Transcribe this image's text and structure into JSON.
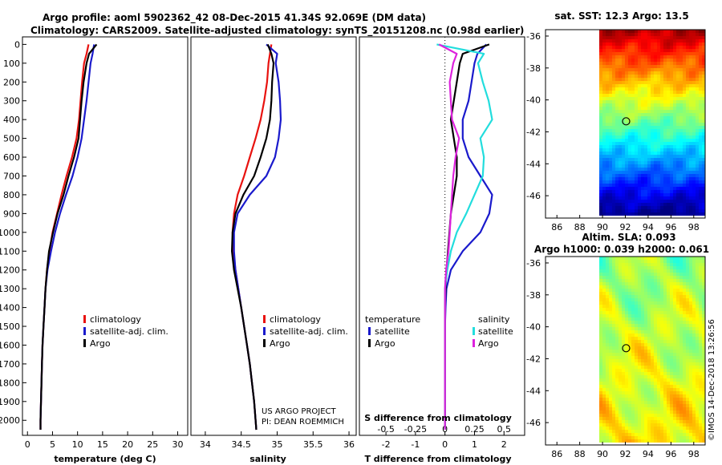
{
  "header": {
    "line1": "Argo profile: aoml 5902362_42 08-Dec-2015 41.34S 92.069E (DM data)",
    "line2": "Climatology: CARS2009. Satellite-adjusted climatology: synTS_20151208.nc (0.98d earlier)"
  },
  "colors": {
    "climatology": "#e8120f",
    "satellite": "#1a1acc",
    "argo": "#000000",
    "sat_s": "#22dddd",
    "clim_s": "#dd22dd"
  },
  "chart_data": [
    {
      "type": "line",
      "name": "temperature",
      "xlabel": "temperature (deg C)",
      "ylabel": "",
      "xlim": [
        -1,
        32
      ],
      "ylim": [
        2080,
        -40
      ],
      "xticks": [
        "0",
        "5",
        "10",
        "15",
        "20",
        "25",
        "30"
      ],
      "yticks": [
        "0",
        "100",
        "200",
        "300",
        "400",
        "500",
        "600",
        "700",
        "800",
        "900",
        "1000",
        "1100",
        "1200",
        "1300",
        "1400",
        "1500",
        "1600",
        "1700",
        "1800",
        "1900",
        "2000"
      ],
      "depth": [
        0,
        50,
        100,
        200,
        300,
        400,
        500,
        600,
        700,
        800,
        900,
        1000,
        1100,
        1200,
        1300,
        1400,
        1500,
        1600,
        1700,
        1800,
        1900,
        2000,
        2050
      ],
      "series": [
        {
          "name": "climatology",
          "values": [
            12.2,
            11.8,
            11.3,
            10.9,
            10.6,
            10.3,
            9.8,
            8.9,
            7.8,
            6.8,
            5.9,
            5.0,
            4.4,
            3.9,
            3.6,
            3.4,
            3.2,
            3.0,
            2.9,
            2.8,
            2.7,
            2.6,
            2.6
          ]
        },
        {
          "name": "satellite-adj. clim.",
          "values": [
            13.3,
            13.0,
            12.6,
            12.2,
            11.8,
            11.3,
            10.8,
            10.0,
            9.0,
            7.7,
            6.5,
            5.5,
            4.7,
            4.0,
            3.6,
            3.4,
            3.2,
            3.0,
            2.9,
            2.8,
            2.7,
            2.6,
            2.6
          ]
        },
        {
          "name": "Argo",
          "values": [
            13.8,
            12.3,
            11.8,
            11.2,
            10.8,
            10.5,
            10.2,
            9.3,
            8.2,
            7.2,
            6.0,
            5.1,
            4.3,
            3.9,
            3.6,
            3.4,
            3.2,
            3.0,
            2.9,
            2.8,
            2.7,
            2.6,
            2.6
          ]
        }
      ],
      "legend": [
        "climatology",
        "satellite-adj. clim.",
        "Argo"
      ]
    },
    {
      "type": "line",
      "name": "salinity",
      "xlabel": "salinity",
      "ylabel": "",
      "xlim": [
        33.8,
        36.1
      ],
      "ylim": [
        2080,
        -40
      ],
      "xticks": [
        "34",
        "34.5",
        "35",
        "35.5",
        "36"
      ],
      "depth": [
        0,
        50,
        100,
        200,
        300,
        400,
        500,
        600,
        700,
        800,
        900,
        1000,
        1100,
        1200,
        1300,
        1400,
        1500,
        1600,
        1700,
        1800,
        1900,
        2000,
        2050
      ],
      "series": [
        {
          "name": "climatology",
          "values": [
            34.92,
            34.9,
            34.88,
            34.86,
            34.82,
            34.77,
            34.7,
            34.62,
            34.54,
            34.45,
            34.4,
            34.38,
            34.39,
            34.42,
            34.46,
            34.5,
            34.54,
            34.58,
            34.62,
            34.65,
            34.68,
            34.7,
            34.71
          ]
        },
        {
          "name": "satellite-adj. clim.",
          "values": [
            34.85,
            35.0,
            34.98,
            35.02,
            35.04,
            35.05,
            35.02,
            34.97,
            34.85,
            34.62,
            34.45,
            34.4,
            34.4,
            34.42,
            34.46,
            34.5,
            34.54,
            34.58,
            34.62,
            34.65,
            34.68,
            34.7,
            34.71
          ]
        },
        {
          "name": "Argo",
          "values": [
            34.87,
            34.92,
            34.95,
            34.93,
            34.92,
            34.9,
            34.85,
            34.77,
            34.68,
            34.53,
            34.42,
            34.38,
            34.37,
            34.4,
            34.45,
            34.5,
            34.54,
            34.58,
            34.62,
            34.65,
            34.68,
            34.7,
            34.71
          ]
        }
      ],
      "legend": [
        "climatology",
        "satellite-adj. clim.",
        "Argo"
      ],
      "credit": [
        "US ARGO PROJECT",
        "PI: DEAN ROEMMICH"
      ]
    },
    {
      "type": "line",
      "name": "differences",
      "xlabel": "T difference from climatology",
      "xlabel2": "S difference from climatology",
      "xlim": [
        -2.9,
        2.7
      ],
      "ylim": [
        2080,
        -40
      ],
      "xticks": [
        "-2",
        "-1",
        "0",
        "1",
        "2"
      ],
      "xticks_s": [
        "-0.5",
        "-0.25",
        "0",
        "0.25",
        "0.5"
      ],
      "depth": [
        0,
        50,
        100,
        200,
        300,
        400,
        500,
        600,
        700,
        800,
        900,
        1000,
        1100,
        1200,
        1300,
        1400,
        1500,
        1600,
        1700,
        1800,
        1900,
        2000,
        2050
      ],
      "series": [
        {
          "name": "T satellite",
          "values": [
            1.4,
            1.1,
            1.0,
            0.9,
            0.8,
            0.6,
            0.6,
            0.8,
            1.2,
            1.6,
            1.5,
            1.2,
            0.6,
            0.2,
            0.05,
            0.02,
            0.0,
            0.0,
            0.0,
            0.0,
            0.0,
            0.0,
            0.0
          ]
        },
        {
          "name": "T Argo",
          "values": [
            1.5,
            0.6,
            0.5,
            0.4,
            0.3,
            0.2,
            0.3,
            0.4,
            0.4,
            0.3,
            0.2,
            0.15,
            0.1,
            0.05,
            0.02,
            0.0,
            0.0,
            0.0,
            0.0,
            0.0,
            0.0,
            0.0,
            0.0
          ]
        },
        {
          "name": "S satellite",
          "values": [
            -0.07,
            0.33,
            0.28,
            0.32,
            0.37,
            0.4,
            0.3,
            0.33,
            0.32,
            0.25,
            0.18,
            0.1,
            0.05,
            0.02,
            0.0,
            0.0,
            0.0,
            0.0,
            0.0,
            0.0,
            0.0,
            0.0,
            0.0
          ]
        },
        {
          "name": "S Argo",
          "values": [
            -0.05,
            0.1,
            0.07,
            0.04,
            0.05,
            0.06,
            0.12,
            0.09,
            0.07,
            0.06,
            0.05,
            0.04,
            0.03,
            0.01,
            0.0,
            0.0,
            0.0,
            0.0,
            0.0,
            0.0,
            0.0,
            0.0,
            0.0
          ]
        }
      ],
      "legend_t": {
        "title": "temperature",
        "items": [
          "satellite",
          "Argo"
        ]
      },
      "legend_s": {
        "title": "salinity",
        "items": [
          "satellite",
          "Argo"
        ]
      }
    },
    {
      "type": "heatmap",
      "name": "sst_map",
      "title": "sat. SST: 12.3 Argo: 13.5",
      "xticks": [
        "86",
        "88",
        "90",
        "92",
        "94",
        "96",
        "98"
      ],
      "yticks": [
        "-36",
        "-38",
        "-40",
        "-42",
        "-44",
        "-46"
      ],
      "xlim": [
        85,
        99
      ],
      "ylim": [
        -47.4,
        -35.6
      ],
      "argo_position": {
        "lon": 92.069,
        "lat": -41.34
      }
    },
    {
      "type": "heatmap",
      "name": "sla_map",
      "title": "Altim. SLA: 0.093",
      "title2": "Argo h1000: 0.039 h2000: 0.061",
      "xticks": [
        "86",
        "88",
        "90",
        "92",
        "94",
        "96",
        "98"
      ],
      "yticks": [
        "-36",
        "-38",
        "-40",
        "-42",
        "-44",
        "-46"
      ],
      "xlim": [
        85,
        99
      ],
      "ylim": [
        -47.4,
        -35.6
      ],
      "argo_position": {
        "lon": 92.069,
        "lat": -41.34
      }
    }
  ],
  "footer": {
    "stamp": "©IMOS 14-Dec-2018 13:26:56"
  }
}
